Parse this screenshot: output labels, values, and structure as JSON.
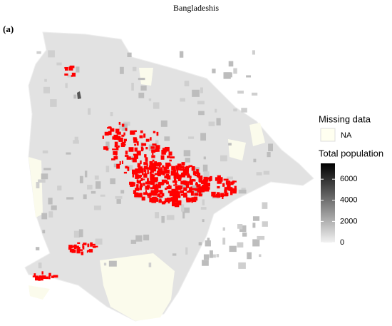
{
  "title": "Bangladeshis",
  "panel_label": "(a)",
  "legend": {
    "missing_title": "Missing data",
    "missing_label": "NA",
    "missing_color": "#fffff0",
    "title": "Total population",
    "lim": [
      0,
      7500
    ],
    "ticks": [
      0,
      2000,
      4000,
      6000
    ],
    "colors": [
      "#f2f2f2",
      "#000000"
    ]
  }
}
